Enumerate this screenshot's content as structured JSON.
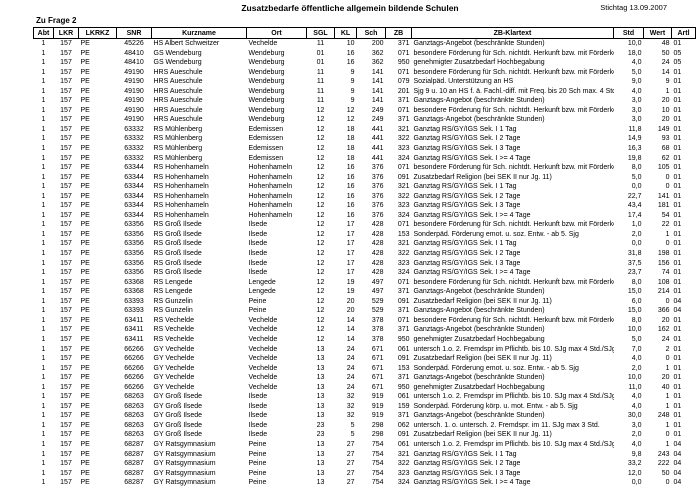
{
  "page": {
    "title": "Zusatzbedarfe öffentliche allgemein bildende Schulen",
    "date_label": "Stichtag 13.09.2007",
    "section_label": "Zu Frage 2"
  },
  "table": {
    "columns": [
      "Abt",
      "LKR",
      "LKRKZ",
      "SNR",
      "Kurzname",
      "Ort",
      "SGL",
      "KL",
      "Sch",
      "ZB",
      "ZB-Klartext",
      "Std",
      "Wert",
      "Artl"
    ],
    "rows": [
      [
        "1",
        "157",
        "PE",
        "45226",
        "HS Albert Schweitzer",
        "Vechelde",
        "11",
        "10",
        "200",
        "371",
        "Ganztags-Angebot (beschränkte Stunden)",
        "10,0",
        "48",
        "01"
      ],
      [
        "1",
        "157",
        "PE",
        "48410",
        "GS Wendeburg",
        "Wendeburg",
        "01",
        "16",
        "362",
        "071",
        "besondere Förderung für Sch. nichtdt. Herkunft bzw. mit Förderkonzept",
        "18,0",
        "50",
        "05"
      ],
      [
        "1",
        "157",
        "PE",
        "48410",
        "GS Wendeburg",
        "Wendeburg",
        "01",
        "16",
        "362",
        "950",
        "genehmigter Zusatzbedarf Hochbegabung",
        "4,0",
        "24",
        "05"
      ],
      [
        "1",
        "157",
        "PE",
        "49190",
        "HRS Aueschule",
        "Wendeburg",
        "11",
        "9",
        "141",
        "071",
        "besondere Förderung für Sch. nichtdt. Herkunft bzw. mit Förderkonzept",
        "5,0",
        "14",
        "01"
      ],
      [
        "1",
        "157",
        "PE",
        "49190",
        "HRS Aueschule",
        "Wendeburg",
        "11",
        "9",
        "141",
        "079",
        "Sozialpäd. Unterstützung an HS",
        "9,0",
        "9",
        "01"
      ],
      [
        "1",
        "157",
        "PE",
        "49190",
        "HRS Aueschule",
        "Wendeburg",
        "11",
        "9",
        "141",
        "201",
        "Sjg 9 u. 10 an HS f. ä. Fachl.-diff. mit Freq. bis 20 Sch max. 4 Std.",
        "4,0",
        "1",
        "01"
      ],
      [
        "1",
        "157",
        "PE",
        "49190",
        "HRS Aueschule",
        "Wendeburg",
        "11",
        "9",
        "141",
        "371",
        "Ganztags-Angebot (beschränkte Stunden)",
        "3,0",
        "20",
        "01"
      ],
      [
        "1",
        "157",
        "PE",
        "49190",
        "HRS Aueschule",
        "Wendeburg",
        "12",
        "12",
        "249",
        "071",
        "besondere Förderung für Sch. nichtdt. Herkunft bzw. mit Förderkonzept",
        "3,0",
        "10",
        "01"
      ],
      [
        "1",
        "157",
        "PE",
        "49190",
        "HRS Aueschule",
        "Wendeburg",
        "12",
        "12",
        "249",
        "371",
        "Ganztags-Angebot (beschränkte Stunden)",
        "3,0",
        "20",
        "01"
      ],
      [
        "1",
        "157",
        "PE",
        "63332",
        "RS Mühlenberg",
        "Edemissen",
        "12",
        "18",
        "441",
        "321",
        "Ganztag RS/GY/IGS Sek. I  1 Tag",
        "11,8",
        "149",
        "01"
      ],
      [
        "1",
        "157",
        "PE",
        "63332",
        "RS Mühlenberg",
        "Edemissen",
        "12",
        "18",
        "441",
        "322",
        "Ganztag RS/GY/IGS Sek. I  2 Tage",
        "14,9",
        "93",
        "01"
      ],
      [
        "1",
        "157",
        "PE",
        "63332",
        "RS Mühlenberg",
        "Edemissen",
        "12",
        "18",
        "441",
        "323",
        "Ganztag RS/GY/IGS Sek. I  3 Tage",
        "16,3",
        "68",
        "01"
      ],
      [
        "1",
        "157",
        "PE",
        "63332",
        "RS Mühlenberg",
        "Edemissen",
        "12",
        "18",
        "441",
        "324",
        "Ganztag RS/GY/IGS Sek. I  >= 4 Tage",
        "19,8",
        "62",
        "01"
      ],
      [
        "1",
        "157",
        "PE",
        "63344",
        "RS Hohenhameln",
        "Hohenhameln",
        "12",
        "16",
        "376",
        "071",
        "besondere Förderung für Sch. nichtdt. Herkunft bzw. mit Förderkonzept",
        "8,0",
        "105",
        "01"
      ],
      [
        "1",
        "157",
        "PE",
        "63344",
        "RS Hohenhameln",
        "Hohenhameln",
        "12",
        "16",
        "376",
        "091",
        "Zusatzbedarf Religion (bei SEK II nur Jg. 11)",
        "5,0",
        "0",
        "01"
      ],
      [
        "1",
        "157",
        "PE",
        "63344",
        "RS Hohenhameln",
        "Hohenhameln",
        "12",
        "16",
        "376",
        "321",
        "Ganztag RS/GY/IGS Sek. I  1 Tag",
        "0,0",
        "0",
        "01"
      ],
      [
        "1",
        "157",
        "PE",
        "63344",
        "RS Hohenhameln",
        "Hohenhameln",
        "12",
        "16",
        "376",
        "322",
        "Ganztag RS/GY/IGS Sek. I  2 Tage",
        "22,7",
        "141",
        "01"
      ],
      [
        "1",
        "157",
        "PE",
        "63344",
        "RS Hohenhameln",
        "Hohenhameln",
        "12",
        "16",
        "376",
        "323",
        "Ganztag RS/GY/IGS Sek. I  3 Tage",
        "43,4",
        "181",
        "01"
      ],
      [
        "1",
        "157",
        "PE",
        "63344",
        "RS Hohenhameln",
        "Hohenhameln",
        "12",
        "16",
        "376",
        "324",
        "Ganztag RS/GY/IGS Sek. I  >= 4 Tage",
        "17,4",
        "54",
        "01"
      ],
      [
        "1",
        "157",
        "PE",
        "63356",
        "RS Groß Ilsede",
        "Ilsede",
        "12",
        "17",
        "428",
        "071",
        "besondere Förderung für Sch. nichtdt. Herkunft bzw. mit Förderkonzept",
        "1,0",
        "22",
        "01"
      ],
      [
        "1",
        "157",
        "PE",
        "63356",
        "RS Groß Ilsede",
        "Ilsede",
        "12",
        "17",
        "428",
        "153",
        "Sonderpäd. Förderung emot. u. soz. Entw. - ab 5. Sjg",
        "2,0",
        "1",
        "01"
      ],
      [
        "1",
        "157",
        "PE",
        "63356",
        "RS Groß Ilsede",
        "Ilsede",
        "12",
        "17",
        "428",
        "321",
        "Ganztag RS/GY/IGS Sek. I  1 Tag",
        "0,0",
        "0",
        "01"
      ],
      [
        "1",
        "157",
        "PE",
        "63356",
        "RS Groß Ilsede",
        "Ilsede",
        "12",
        "17",
        "428",
        "322",
        "Ganztag RS/GY/IGS Sek. I  2 Tage",
        "31,8",
        "198",
        "01"
      ],
      [
        "1",
        "157",
        "PE",
        "63356",
        "RS Groß Ilsede",
        "Ilsede",
        "12",
        "17",
        "428",
        "323",
        "Ganztag RS/GY/IGS Sek. I  3 Tage",
        "37,5",
        "156",
        "01"
      ],
      [
        "1",
        "157",
        "PE",
        "63356",
        "RS Groß Ilsede",
        "Ilsede",
        "12",
        "17",
        "428",
        "324",
        "Ganztag RS/GY/IGS Sek. I  >= 4 Tage",
        "23,7",
        "74",
        "01"
      ],
      [
        "1",
        "157",
        "PE",
        "63368",
        "RS Lengede",
        "Lengede",
        "12",
        "19",
        "497",
        "071",
        "besondere Förderung für Sch. nichtdt. Herkunft bzw. mit Förderkonzept",
        "8,0",
        "108",
        "01"
      ],
      [
        "1",
        "157",
        "PE",
        "63368",
        "RS Lengede",
        "Lengede",
        "12",
        "19",
        "497",
        "371",
        "Ganztags-Angebot (beschränkte Stunden)",
        "15,0",
        "214",
        "01"
      ],
      [
        "1",
        "157",
        "PE",
        "63393",
        "RS Gunzelin",
        "Peine",
        "12",
        "20",
        "529",
        "091",
        "Zusatzbedarf Religion (bei SEK II nur Jg. 11)",
        "6,0",
        "0",
        "04"
      ],
      [
        "1",
        "157",
        "PE",
        "63393",
        "RS Gunzelin",
        "Peine",
        "12",
        "20",
        "529",
        "371",
        "Ganztags-Angebot (beschränkte Stunden)",
        "15,0",
        "366",
        "04"
      ],
      [
        "1",
        "157",
        "PE",
        "63411",
        "RS Vechelde",
        "Vechelde",
        "12",
        "14",
        "378",
        "071",
        "besondere Förderung für Sch. nichtdt. Herkunft bzw. mit Förderkonzept",
        "8,0",
        "20",
        "01"
      ],
      [
        "1",
        "157",
        "PE",
        "63411",
        "RS Vechelde",
        "Vechelde",
        "12",
        "14",
        "378",
        "371",
        "Ganztags-Angebot (beschränkte Stunden)",
        "10,0",
        "162",
        "01"
      ],
      [
        "1",
        "157",
        "PE",
        "63411",
        "RS Vechelde",
        "Vechelde",
        "12",
        "14",
        "378",
        "950",
        "genehmigter Zusatzbedarf Hochbegabung",
        "5,0",
        "24",
        "01"
      ],
      [
        "1",
        "157",
        "PE",
        "66266",
        "GY Vechelde",
        "Vechelde",
        "13",
        "24",
        "671",
        "061",
        "untersch 1.o. 2. Fremdspr im Pflichtb. bis 10. SJg max 4 Std./SJg",
        "7,0",
        "2",
        "01"
      ],
      [
        "1",
        "157",
        "PE",
        "66266",
        "GY Vechelde",
        "Vechelde",
        "13",
        "24",
        "671",
        "091",
        "Zusatzbedarf Religion (bei SEK II nur Jg. 11)",
        "4,0",
        "0",
        "01"
      ],
      [
        "1",
        "157",
        "PE",
        "66266",
        "GY Vechelde",
        "Vechelde",
        "13",
        "24",
        "671",
        "153",
        "Sonderpäd. Förderung emot. u. soz. Entw. - ab 5. Sjg",
        "2,0",
        "1",
        "01"
      ],
      [
        "1",
        "157",
        "PE",
        "66266",
        "GY Vechelde",
        "Vechelde",
        "13",
        "24",
        "671",
        "371",
        "Ganztags-Angebot (beschränkte Stunden)",
        "10,0",
        "20",
        "01"
      ],
      [
        "1",
        "157",
        "PE",
        "66266",
        "GY Vechelde",
        "Vechelde",
        "13",
        "24",
        "671",
        "950",
        "genehmigter Zusatzbedarf Hochbegabung",
        "11,0",
        "40",
        "01"
      ],
      [
        "1",
        "157",
        "PE",
        "68263",
        "GY Groß Ilsede",
        "Ilsede",
        "13",
        "32",
        "919",
        "061",
        "untersch 1.o. 2. Fremdspr im Pflichtb. bis 10. SJg max 4 Std./SJg",
        "4,0",
        "1",
        "01"
      ],
      [
        "1",
        "157",
        "PE",
        "68263",
        "GY Groß Ilsede",
        "Ilsede",
        "13",
        "32",
        "919",
        "159",
        "Sonderpäd. Förderung körp. u. mot. Entw. - ab 5. Sjg",
        "4,0",
        "1",
        "01"
      ],
      [
        "1",
        "157",
        "PE",
        "68263",
        "GY Groß Ilsede",
        "Ilsede",
        "13",
        "32",
        "919",
        "371",
        "Ganztags-Angebot (beschränkte Stunden)",
        "30,0",
        "248",
        "01"
      ],
      [
        "1",
        "157",
        "PE",
        "68263",
        "GY Groß Ilsede",
        "Ilsede",
        "23",
        "5",
        "298",
        "062",
        "untersch. 1. o. untersch. 2. Fremdspr. im 11. SJg max 3 Std.",
        "3,0",
        "1",
        "01"
      ],
      [
        "1",
        "157",
        "PE",
        "68263",
        "GY Groß Ilsede",
        "Ilsede",
        "23",
        "5",
        "298",
        "091",
        "Zusatzbedarf Religion (bei SEK II nur Jg. 11)",
        "2,0",
        "0",
        "01"
      ],
      [
        "1",
        "157",
        "PE",
        "68287",
        "GY Ratsgymnasium",
        "Peine",
        "13",
        "27",
        "754",
        "061",
        "untersch 1.o. 2. Fremdspr im Pflichtb. bis 10. SJg max 4 Std./SJg",
        "4,0",
        "1",
        "04"
      ],
      [
        "1",
        "157",
        "PE",
        "68287",
        "GY Ratsgymnasium",
        "Peine",
        "13",
        "27",
        "754",
        "321",
        "Ganztag RS/GY/IGS Sek. I  1 Tag",
        "9,8",
        "243",
        "04"
      ],
      [
        "1",
        "157",
        "PE",
        "68287",
        "GY Ratsgymnasium",
        "Peine",
        "13",
        "27",
        "754",
        "322",
        "Ganztag RS/GY/IGS Sek. I  2 Tage",
        "33,2",
        "222",
        "04"
      ],
      [
        "1",
        "157",
        "PE",
        "68287",
        "GY Ratsgymnasium",
        "Peine",
        "13",
        "27",
        "754",
        "323",
        "Ganztag RS/GY/IGS Sek. I  3 Tage",
        "12,0",
        "50",
        "04"
      ],
      [
        "1",
        "157",
        "PE",
        "68287",
        "GY Ratsgymnasium",
        "Peine",
        "13",
        "27",
        "754",
        "324",
        "Ganztag RS/GY/IGS Sek. I  >= 4 Tage",
        "0,0",
        "0",
        "04"
      ]
    ]
  }
}
